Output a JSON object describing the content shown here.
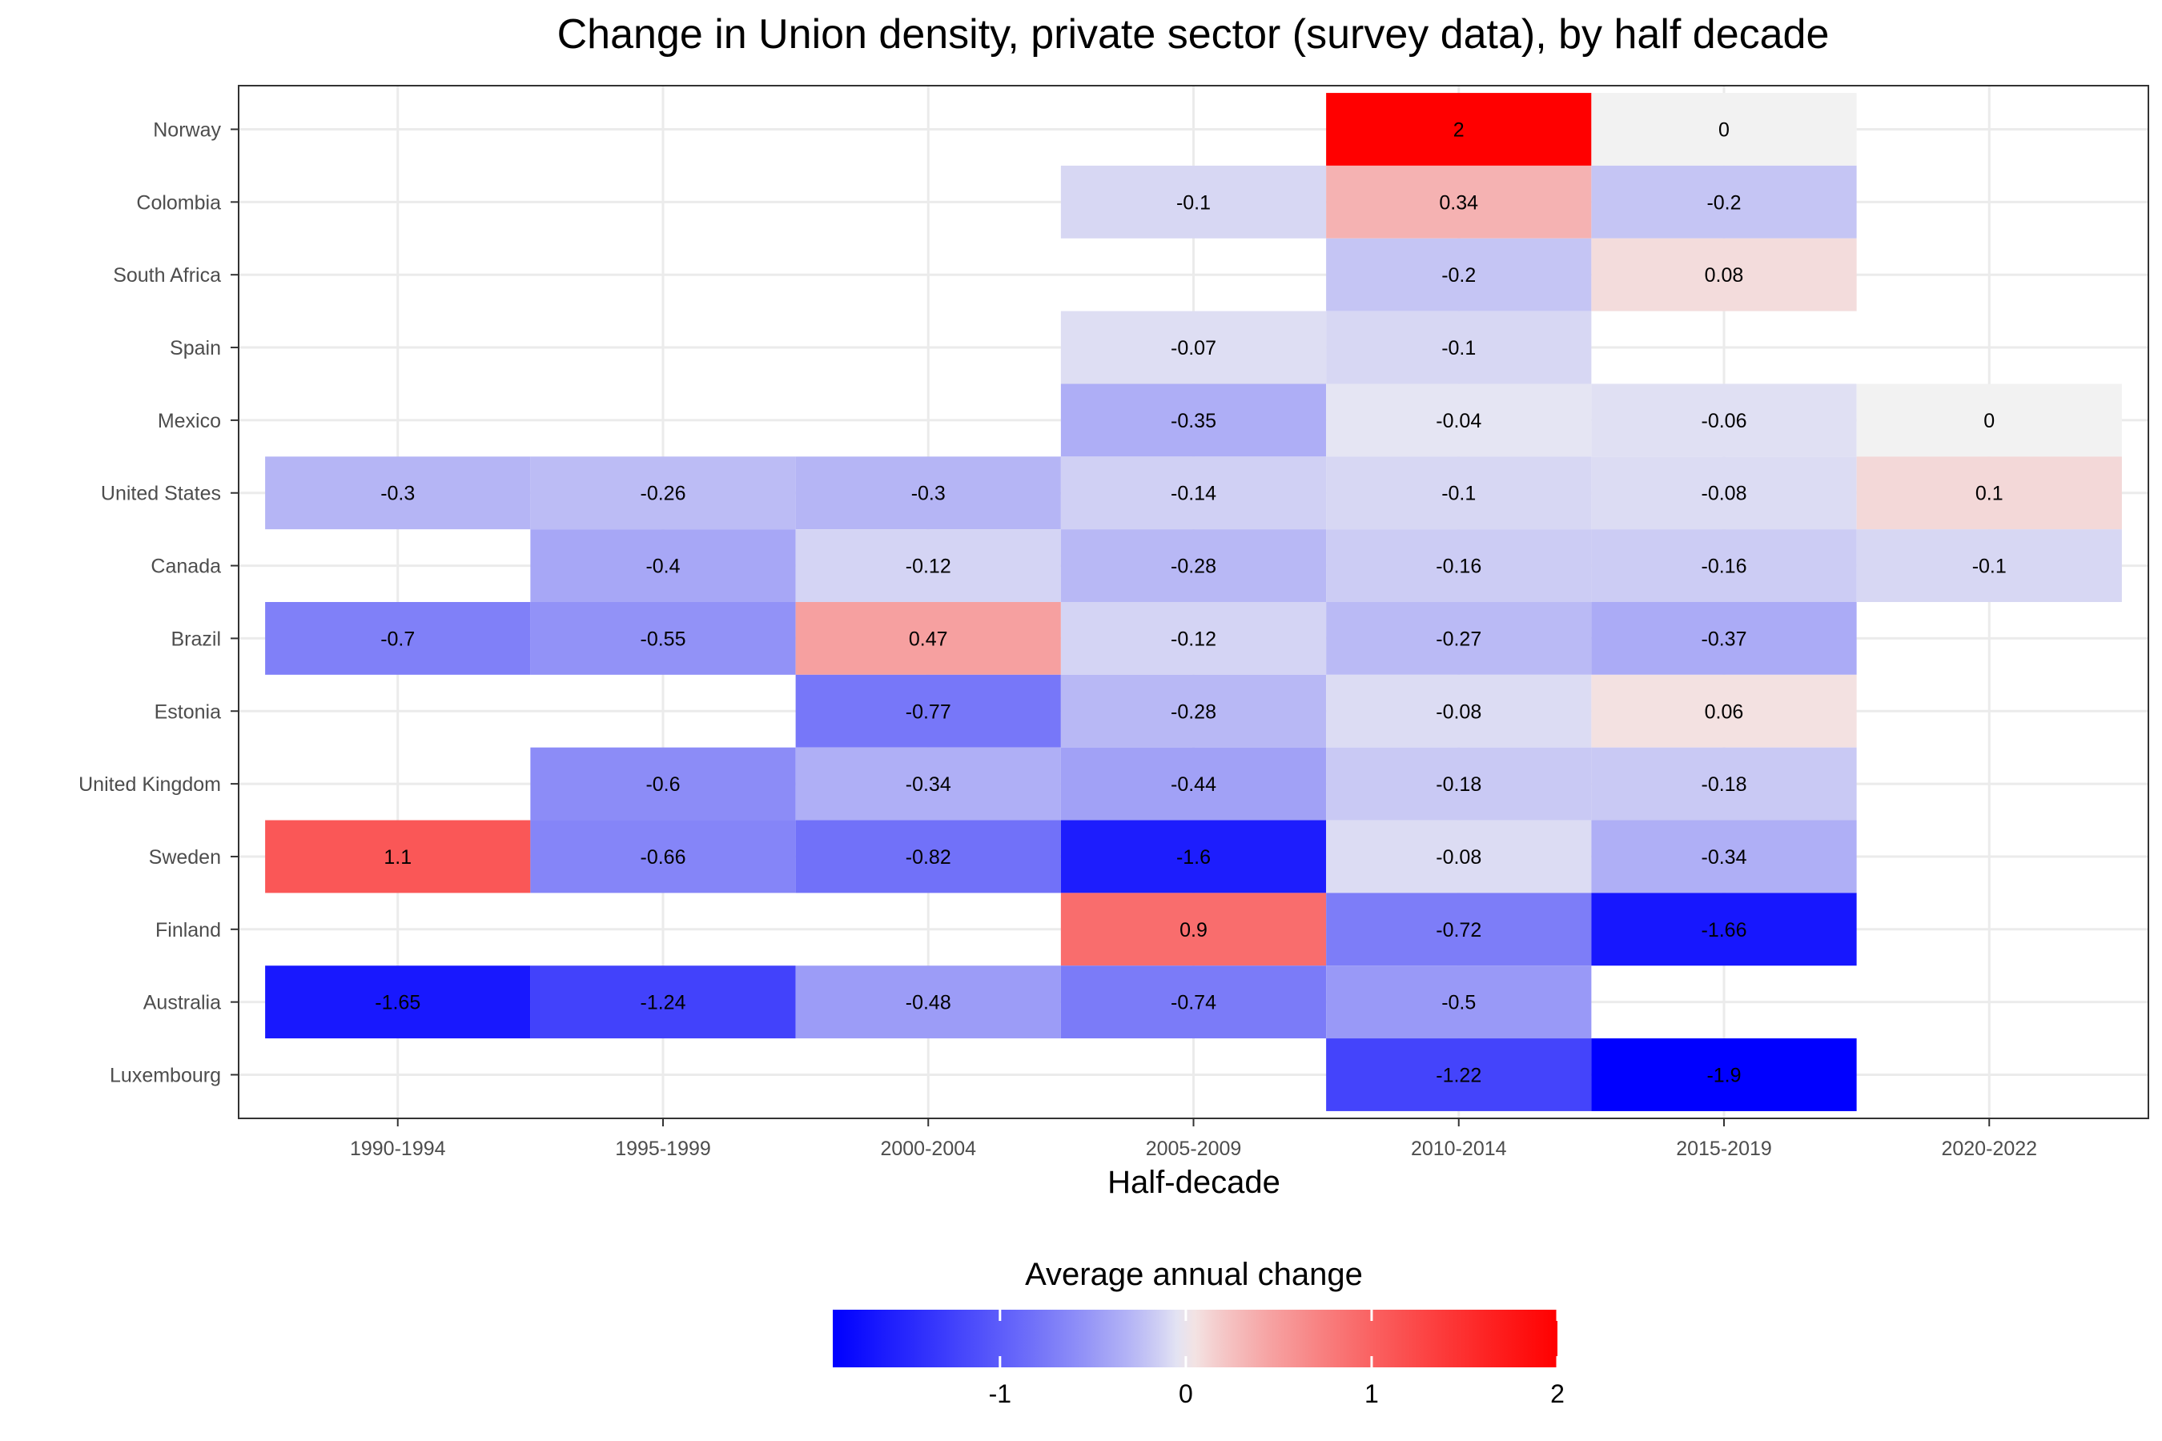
{
  "chart_data": {
    "type": "heatmap",
    "title": "Change in Union density, private sector (survey data), by half decade",
    "xlabel": "Half-decade",
    "ylabel": "",
    "x_categories": [
      "1990-1994",
      "1995-1999",
      "2000-2004",
      "2005-2009",
      "2010-2014",
      "2015-2019",
      "2020-2022"
    ],
    "y_categories": [
      "Norway",
      "Colombia",
      "South Africa",
      "Spain",
      "Mexico",
      "United States",
      "Canada",
      "Brazil",
      "Estonia",
      "United Kingdom",
      "Sweden",
      "Finland",
      "Australia",
      "Luxembourg"
    ],
    "cells": [
      {
        "country": "Norway",
        "period": "2010-2014",
        "value": 2,
        "label": "2"
      },
      {
        "country": "Norway",
        "period": "2015-2019",
        "value": 0,
        "label": "0"
      },
      {
        "country": "Colombia",
        "period": "2005-2009",
        "value": -0.1,
        "label": "-0.1"
      },
      {
        "country": "Colombia",
        "period": "2010-2014",
        "value": 0.34,
        "label": "0.34"
      },
      {
        "country": "Colombia",
        "period": "2015-2019",
        "value": -0.2,
        "label": "-0.2"
      },
      {
        "country": "South Africa",
        "period": "2010-2014",
        "value": -0.2,
        "label": "-0.2"
      },
      {
        "country": "South Africa",
        "period": "2015-2019",
        "value": 0.08,
        "label": "0.08"
      },
      {
        "country": "Spain",
        "period": "2005-2009",
        "value": -0.07,
        "label": "-0.07"
      },
      {
        "country": "Spain",
        "period": "2010-2014",
        "value": -0.1,
        "label": "-0.1"
      },
      {
        "country": "Mexico",
        "period": "2005-2009",
        "value": -0.35,
        "label": "-0.35"
      },
      {
        "country": "Mexico",
        "period": "2010-2014",
        "value": -0.04,
        "label": "-0.04"
      },
      {
        "country": "Mexico",
        "period": "2015-2019",
        "value": -0.06,
        "label": "-0.06"
      },
      {
        "country": "Mexico",
        "period": "2020-2022",
        "value": 0,
        "label": "0"
      },
      {
        "country": "United States",
        "period": "1990-1994",
        "value": -0.3,
        "label": "-0.3"
      },
      {
        "country": "United States",
        "period": "1995-1999",
        "value": -0.26,
        "label": "-0.26"
      },
      {
        "country": "United States",
        "period": "2000-2004",
        "value": -0.3,
        "label": "-0.3"
      },
      {
        "country": "United States",
        "period": "2005-2009",
        "value": -0.14,
        "label": "-0.14"
      },
      {
        "country": "United States",
        "period": "2010-2014",
        "value": -0.1,
        "label": "-0.1"
      },
      {
        "country": "United States",
        "period": "2015-2019",
        "value": -0.08,
        "label": "-0.08"
      },
      {
        "country": "United States",
        "period": "2020-2022",
        "value": 0.1,
        "label": "0.1"
      },
      {
        "country": "Canada",
        "period": "1995-1999",
        "value": -0.4,
        "label": "-0.4"
      },
      {
        "country": "Canada",
        "period": "2000-2004",
        "value": -0.12,
        "label": "-0.12"
      },
      {
        "country": "Canada",
        "period": "2005-2009",
        "value": -0.28,
        "label": "-0.28"
      },
      {
        "country": "Canada",
        "period": "2010-2014",
        "value": -0.16,
        "label": "-0.16"
      },
      {
        "country": "Canada",
        "period": "2015-2019",
        "value": -0.16,
        "label": "-0.16"
      },
      {
        "country": "Canada",
        "period": "2020-2022",
        "value": -0.1,
        "label": "-0.1"
      },
      {
        "country": "Brazil",
        "period": "1990-1994",
        "value": -0.7,
        "label": "-0.7"
      },
      {
        "country": "Brazil",
        "period": "1995-1999",
        "value": -0.55,
        "label": "-0.55"
      },
      {
        "country": "Brazil",
        "period": "2000-2004",
        "value": 0.47,
        "label": "0.47"
      },
      {
        "country": "Brazil",
        "period": "2005-2009",
        "value": -0.12,
        "label": "-0.12"
      },
      {
        "country": "Brazil",
        "period": "2010-2014",
        "value": -0.27,
        "label": "-0.27"
      },
      {
        "country": "Brazil",
        "period": "2015-2019",
        "value": -0.37,
        "label": "-0.37"
      },
      {
        "country": "Estonia",
        "period": "2000-2004",
        "value": -0.77,
        "label": "-0.77"
      },
      {
        "country": "Estonia",
        "period": "2005-2009",
        "value": -0.28,
        "label": "-0.28"
      },
      {
        "country": "Estonia",
        "period": "2010-2014",
        "value": -0.08,
        "label": "-0.08"
      },
      {
        "country": "Estonia",
        "period": "2015-2019",
        "value": 0.06,
        "label": "0.06"
      },
      {
        "country": "United Kingdom",
        "period": "1995-1999",
        "value": -0.6,
        "label": "-0.6"
      },
      {
        "country": "United Kingdom",
        "period": "2000-2004",
        "value": -0.34,
        "label": "-0.34"
      },
      {
        "country": "United Kingdom",
        "period": "2005-2009",
        "value": -0.44,
        "label": "-0.44"
      },
      {
        "country": "United Kingdom",
        "period": "2010-2014",
        "value": -0.18,
        "label": "-0.18"
      },
      {
        "country": "United Kingdom",
        "period": "2015-2019",
        "value": -0.18,
        "label": "-0.18"
      },
      {
        "country": "Sweden",
        "period": "1990-1994",
        "value": 1.1,
        "label": "1.1"
      },
      {
        "country": "Sweden",
        "period": "1995-1999",
        "value": -0.66,
        "label": "-0.66"
      },
      {
        "country": "Sweden",
        "period": "2000-2004",
        "value": -0.82,
        "label": "-0.82"
      },
      {
        "country": "Sweden",
        "period": "2005-2009",
        "value": -1.6,
        "label": "-1.6"
      },
      {
        "country": "Sweden",
        "period": "2010-2014",
        "value": -0.08,
        "label": "-0.08"
      },
      {
        "country": "Sweden",
        "period": "2015-2019",
        "value": -0.34,
        "label": "-0.34"
      },
      {
        "country": "Finland",
        "period": "2005-2009",
        "value": 0.9,
        "label": "0.9"
      },
      {
        "country": "Finland",
        "period": "2010-2014",
        "value": -0.72,
        "label": "-0.72"
      },
      {
        "country": "Finland",
        "period": "2015-2019",
        "value": -1.66,
        "label": "-1.66"
      },
      {
        "country": "Australia",
        "period": "1990-1994",
        "value": -1.65,
        "label": "-1.65"
      },
      {
        "country": "Australia",
        "period": "1995-1999",
        "value": -1.24,
        "label": "-1.24"
      },
      {
        "country": "Australia",
        "period": "2000-2004",
        "value": -0.48,
        "label": "-0.48"
      },
      {
        "country": "Australia",
        "period": "2005-2009",
        "value": -0.74,
        "label": "-0.74"
      },
      {
        "country": "Australia",
        "period": "2010-2014",
        "value": -0.5,
        "label": "-0.5"
      },
      {
        "country": "Luxembourg",
        "period": "2010-2014",
        "value": -1.22,
        "label": "-1.22"
      },
      {
        "country": "Luxembourg",
        "period": "2015-2019",
        "value": -1.9,
        "label": "-1.9"
      }
    ],
    "color_scale": {
      "title": "Average annual change",
      "low_color": "#0000ff",
      "mid_color": "#f2f2f2",
      "high_color": "#ff0000",
      "min": -1.9,
      "mid": 0,
      "max": 2,
      "ticks": [
        -1,
        0,
        1,
        2
      ]
    },
    "grid": true,
    "legend_position": "bottom"
  }
}
